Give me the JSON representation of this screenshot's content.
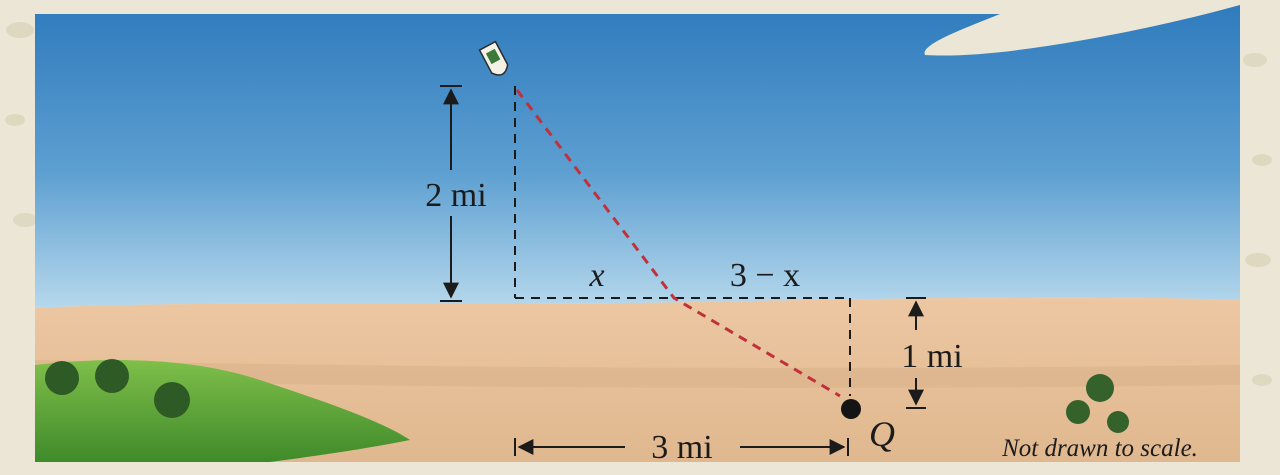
{
  "diagram": {
    "boat_height_label": "2 mi",
    "shore_segment_x_label": "x",
    "shore_segment_rest_label": "3 − x",
    "point_depth_label": "1 mi",
    "horizontal_distance_label": "3 mi",
    "point_label": "Q",
    "note": "Not drawn to scale."
  },
  "colors": {
    "water_top": "#2f7fc0",
    "water_bottom": "#b5d6ec",
    "sand": "#e6c19d",
    "grass": "#5e9e3a",
    "path_line": "#c0313b",
    "dimension_line": "#1b1b1b"
  },
  "icons": {
    "boat": "boat-icon",
    "point_marker": "point-q-marker",
    "trees": "tree-icon"
  }
}
